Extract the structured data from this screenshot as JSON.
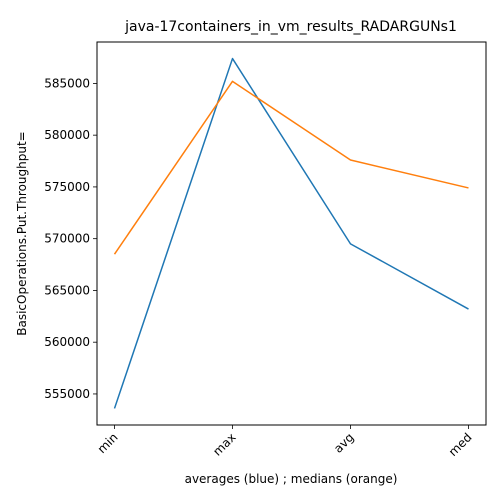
{
  "chart_data": {
    "type": "line",
    "title": "java-17containers_in_vm_results_RADARGUNs1",
    "xlabel": "averages (blue) ; medians (orange)",
    "ylabel": "BasicOperations.Put.Throughput=",
    "categories": [
      "min",
      "max",
      "avg",
      "med"
    ],
    "series": [
      {
        "values": [
          553600,
          587400,
          569500,
          563200
        ],
        "color": "#1f77b4"
      },
      {
        "values": [
          568500,
          585200,
          577600,
          574900
        ],
        "color": "#ff7f0e"
      }
    ],
    "ylim": [
      552000,
      589000
    ],
    "yticks": [
      555000,
      560000,
      565000,
      570000,
      575000,
      580000,
      585000
    ],
    "ytick_labels": [
      "555000",
      "560000",
      "565000",
      "570000",
      "575000",
      "580000",
      "585000"
    ],
    "grid": false,
    "legend": "none"
  }
}
